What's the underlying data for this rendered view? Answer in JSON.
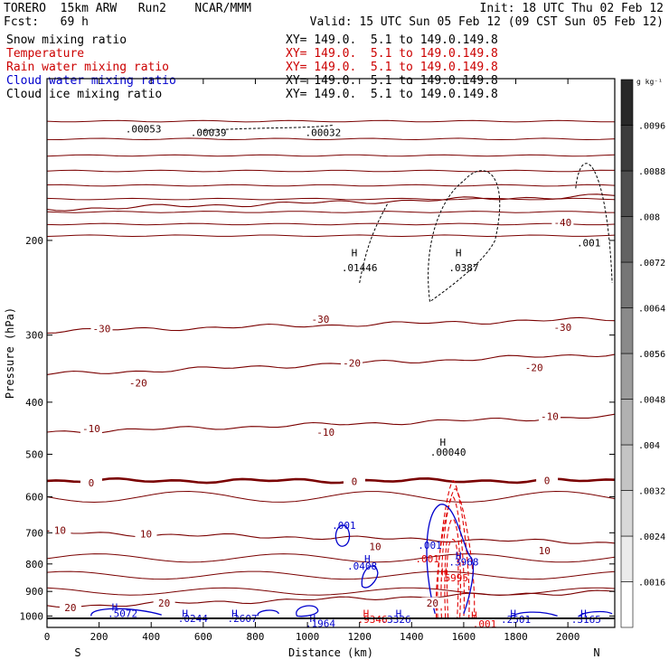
{
  "header": {
    "model": "TORERO  15km ARW   Run2    NCAR/MMM",
    "init": "Init: 18 UTC Thu 02 Feb 12",
    "fcst": "Fcst:   69 h",
    "valid": "Valid: 15 UTC Sun 05 Feb 12 (09 CST Sun 05 Feb 12)",
    "fields": [
      {
        "label": "Snow mixing ratio",
        "xy": "XY= 149.0.  5.1 to 149.0.149.8",
        "color": "#000000"
      },
      {
        "label": "Temperature",
        "xy": "XY= 149.0.  5.1 to 149.0.149.8",
        "color": "#cc0000"
      },
      {
        "label": "Rain water mixing ratio",
        "xy": "XY= 149.0.  5.1 to 149.0.149.8",
        "color": "#cc0000"
      },
      {
        "label": "Cloud water mixing ratio",
        "xy": "XY= 149.0.  5.1 to 149.0.149.8",
        "color": "#0000cc"
      },
      {
        "label": "Cloud ice mixing ratio",
        "xy": "XY= 149.0.  5.1 to 149.0.149.8",
        "color": "#000000"
      }
    ]
  },
  "chart_data": {
    "type": "cross-section contour",
    "xlabel": "Distance (km)",
    "ylabel": "Pressure (hPa)",
    "xlim": [
      0,
      2180
    ],
    "ylim": [
      1050,
      100
    ],
    "y_scale": "log",
    "x_ticks": [
      0,
      200,
      400,
      600,
      800,
      1000,
      1200,
      1400,
      1600,
      1800,
      2000
    ],
    "y_ticks": [
      200,
      300,
      400,
      500,
      600,
      700,
      800,
      900,
      1000
    ],
    "x_endpoint_labels": {
      "left": "S",
      "right": "N"
    },
    "surface_pressure": 1010,
    "temperature_isotherms": [
      {
        "label": "-40",
        "p_left": 175,
        "p_right": 165
      },
      {
        "label": "-30",
        "p_left": 295,
        "p_right": 280
      },
      {
        "label": "-20",
        "p_left": 355,
        "p_right": 325
      },
      {
        "label": "-10",
        "p_left": 455,
        "p_right": 425
      },
      {
        "label": "0",
        "p_left": 560,
        "p_right": 560
      },
      {
        "label": "10",
        "p_left": 700,
        "p_right": 730
      },
      {
        "label": "20",
        "p_left": 960,
        "p_right": 900
      }
    ],
    "temperature_labels": [
      {
        "text": "-40",
        "x": 1980,
        "p": 185
      },
      {
        "text": "-30",
        "x": 210,
        "p": 292
      },
      {
        "text": "-30",
        "x": 1050,
        "p": 280
      },
      {
        "text": "-30",
        "x": 1980,
        "p": 290
      },
      {
        "text": "-20",
        "x": 350,
        "p": 368
      },
      {
        "text": "-20",
        "x": 1170,
        "p": 338
      },
      {
        "text": "-20",
        "x": 1870,
        "p": 345
      },
      {
        "text": "-10",
        "x": 170,
        "p": 448
      },
      {
        "text": "-10",
        "x": 1070,
        "p": 455
      },
      {
        "text": "-10",
        "x": 1930,
        "p": 425
      },
      {
        "text": "0",
        "x": 170,
        "p": 565
      },
      {
        "text": "0",
        "x": 1180,
        "p": 562
      },
      {
        "text": "0",
        "x": 1920,
        "p": 560
      },
      {
        "text": "10",
        "x": 50,
        "p": 693
      },
      {
        "text": "10",
        "x": 380,
        "p": 703
      },
      {
        "text": "10",
        "x": 1260,
        "p": 743
      },
      {
        "text": "10",
        "x": 1910,
        "p": 755
      },
      {
        "text": "20",
        "x": 90,
        "p": 965
      },
      {
        "text": "20",
        "x": 450,
        "p": 945
      },
      {
        "text": "20",
        "x": 1480,
        "p": 945
      }
    ],
    "cloud_ice_labels": [
      {
        "text": ".00053",
        "x": 370,
        "p": 126
      },
      {
        "text": ".00039",
        "x": 620,
        "p": 128
      },
      {
        "text": ".00032",
        "x": 1060,
        "p": 128
      },
      {
        "text": "H",
        "x": 1180,
        "p": 214
      },
      {
        "text": ".01446",
        "x": 1200,
        "p": 228
      },
      {
        "text": "H",
        "x": 1580,
        "p": 214
      },
      {
        "text": ".0387",
        "x": 1600,
        "p": 228
      },
      {
        "text": ".001",
        "x": 2080,
        "p": 205
      },
      {
        "text": "H",
        "x": 1520,
        "p": 482
      },
      {
        "text": ".00040",
        "x": 1540,
        "p": 503
      }
    ],
    "cloud_water_labels": [
      {
        "text": ".001",
        "x": 1140,
        "p": 688
      },
      {
        "text": ".001",
        "x": 1470,
        "p": 750
      },
      {
        "text": "H",
        "x": 1230,
        "p": 795
      },
      {
        "text": ".0408",
        "x": 1210,
        "p": 820
      },
      {
        "text": "H",
        "x": 1580,
        "p": 783
      },
      {
        "text": ".3968",
        "x": 1600,
        "p": 805
      },
      {
        "text": "H",
        "x": 260,
        "p": 978
      },
      {
        "text": ".5072",
        "x": 290,
        "p": 1005
      },
      {
        "text": "H",
        "x": 530,
        "p": 1005
      },
      {
        "text": ".0244",
        "x": 560,
        "p": 1025
      },
      {
        "text": "H",
        "x": 720,
        "p": 1005
      },
      {
        "text": ".2607",
        "x": 750,
        "p": 1025
      },
      {
        "text": "H",
        "x": 1020,
        "p": 1025
      },
      {
        "text": ".1964",
        "x": 1050,
        "p": 1048
      },
      {
        "text": "H",
        "x": 1350,
        "p": 1005
      },
      {
        "text": ".3326",
        "x": 1340,
        "p": 1030
      },
      {
        "text": "H",
        "x": 1790,
        "p": 1005
      },
      {
        "text": ".2501",
        "x": 1800,
        "p": 1030
      },
      {
        "text": "H",
        "x": 2060,
        "p": 1005
      },
      {
        "text": ".3165",
        "x": 2070,
        "p": 1030
      }
    ],
    "rain_water_labels": [
      {
        "text": ".001",
        "x": 1460,
        "p": 795
      },
      {
        "text": "H",
        "x": 1525,
        "p": 840
      },
      {
        "text": ".5995",
        "x": 1560,
        "p": 862
      },
      {
        "text": "H",
        "x": 1225,
        "p": 1005
      },
      {
        "text": ".9346",
        "x": 1250,
        "p": 1030
      },
      {
        "text": "H",
        "x": 1640,
        "p": 1012
      },
      {
        "text": ".001",
        "x": 1680,
        "p": 1050
      }
    ],
    "colorbar": {
      "unit": "g kg⁻¹",
      "ticks": [
        ".0016",
        ".0024",
        ".0032",
        ".004",
        ".0048",
        ".0056",
        ".0064",
        ".0072",
        ".008",
        ".0088",
        ".0096"
      ]
    },
    "colors": {
      "temperature": "#7a0000",
      "rain": "#e00000",
      "cloud_water": "#0000cc",
      "ice": "#000000"
    }
  }
}
